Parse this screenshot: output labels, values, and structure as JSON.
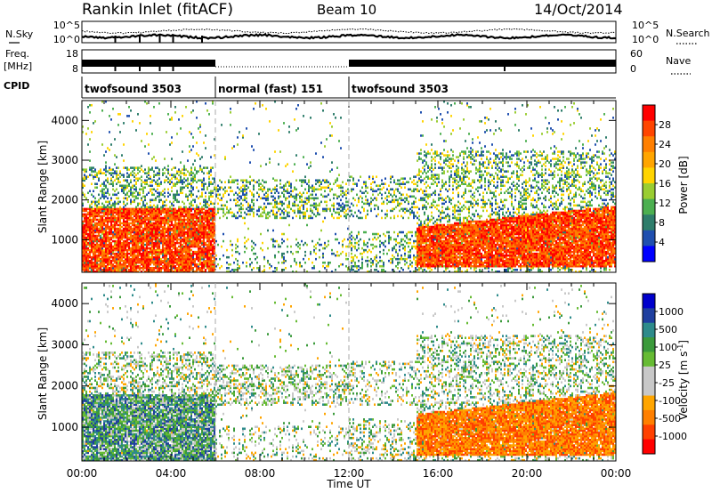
{
  "header": {
    "station": "Rankin Inlet (fitACF)",
    "beam": "Beam 10",
    "date": "14/Oct/2014"
  },
  "status_panels": {
    "nsky_label": "N.Sky",
    "nsearch_label": "N.Search",
    "freq_label_line1": "Freq.",
    "freq_label_line2": "[MHz]",
    "nave_label": "Nave",
    "cpid_label": "CPID",
    "left_ticks_noise": [
      "10^5",
      "10^0"
    ],
    "right_ticks_noise": [
      "10^5",
      "10^0"
    ],
    "left_ticks_freq": [
      "18",
      "8"
    ],
    "right_ticks_freq": [
      "60",
      "0"
    ],
    "cpid_segments": [
      {
        "name": "twofsound 3503",
        "start_hour": 0,
        "end_hour": 6
      },
      {
        "name": "normal (fast) 151",
        "start_hour": 6,
        "end_hour": 12
      },
      {
        "name": "twofsound 3503",
        "start_hour": 12,
        "end_hour": 24
      }
    ]
  },
  "colors": {
    "power": [
      "#0000ff",
      "#1f4faf",
      "#2e7d6b",
      "#4caf50",
      "#9acd32",
      "#ffd400",
      "#ffa500",
      "#ff7f00",
      "#ff4500",
      "#ff0000"
    ],
    "velocity": [
      "#ff0000",
      "#ff4000",
      "#ff7f00",
      "#ffa500",
      "#c8c8c8",
      "#c8c8c8",
      "#66bb33",
      "#3b9a3b",
      "#2e8b8b",
      "#1f3f9f",
      "#0000cc"
    ]
  },
  "chart_data": [
    {
      "type": "heatmap",
      "title": "Power",
      "xlabel": "",
      "ylabel": "Slant Range [km]",
      "xlim": [
        0,
        24
      ],
      "ylim": [
        180,
        4500
      ],
      "x_tick_labels": [
        "00:00",
        "04:00",
        "08:00",
        "12:00",
        "16:00",
        "20:00",
        "00:00"
      ],
      "y_tick_labels": [
        "1000",
        "2000",
        "3000",
        "4000"
      ],
      "colorbar": {
        "label": "Power [dB]",
        "ticks": [
          "28",
          "24",
          "20",
          "16",
          "12",
          "8",
          "4"
        ]
      }
    },
    {
      "type": "heatmap",
      "title": "Velocity",
      "xlabel": "Time UT",
      "ylabel": "Slant Range [km]",
      "xlim": [
        0,
        24
      ],
      "ylim": [
        180,
        4500
      ],
      "x_tick_labels": [
        "00:00",
        "04:00",
        "08:00",
        "12:00",
        "16:00",
        "20:00",
        "00:00"
      ],
      "y_tick_labels": [
        "1000",
        "2000",
        "3000",
        "4000"
      ],
      "colorbar": {
        "label": "Velocity [m s",
        "label_sup": "-1",
        "label_close": "]",
        "ticks": [
          "1000",
          "500",
          "100",
          "25",
          "-25",
          "-100",
          "-500",
          "-1000"
        ]
      }
    }
  ]
}
